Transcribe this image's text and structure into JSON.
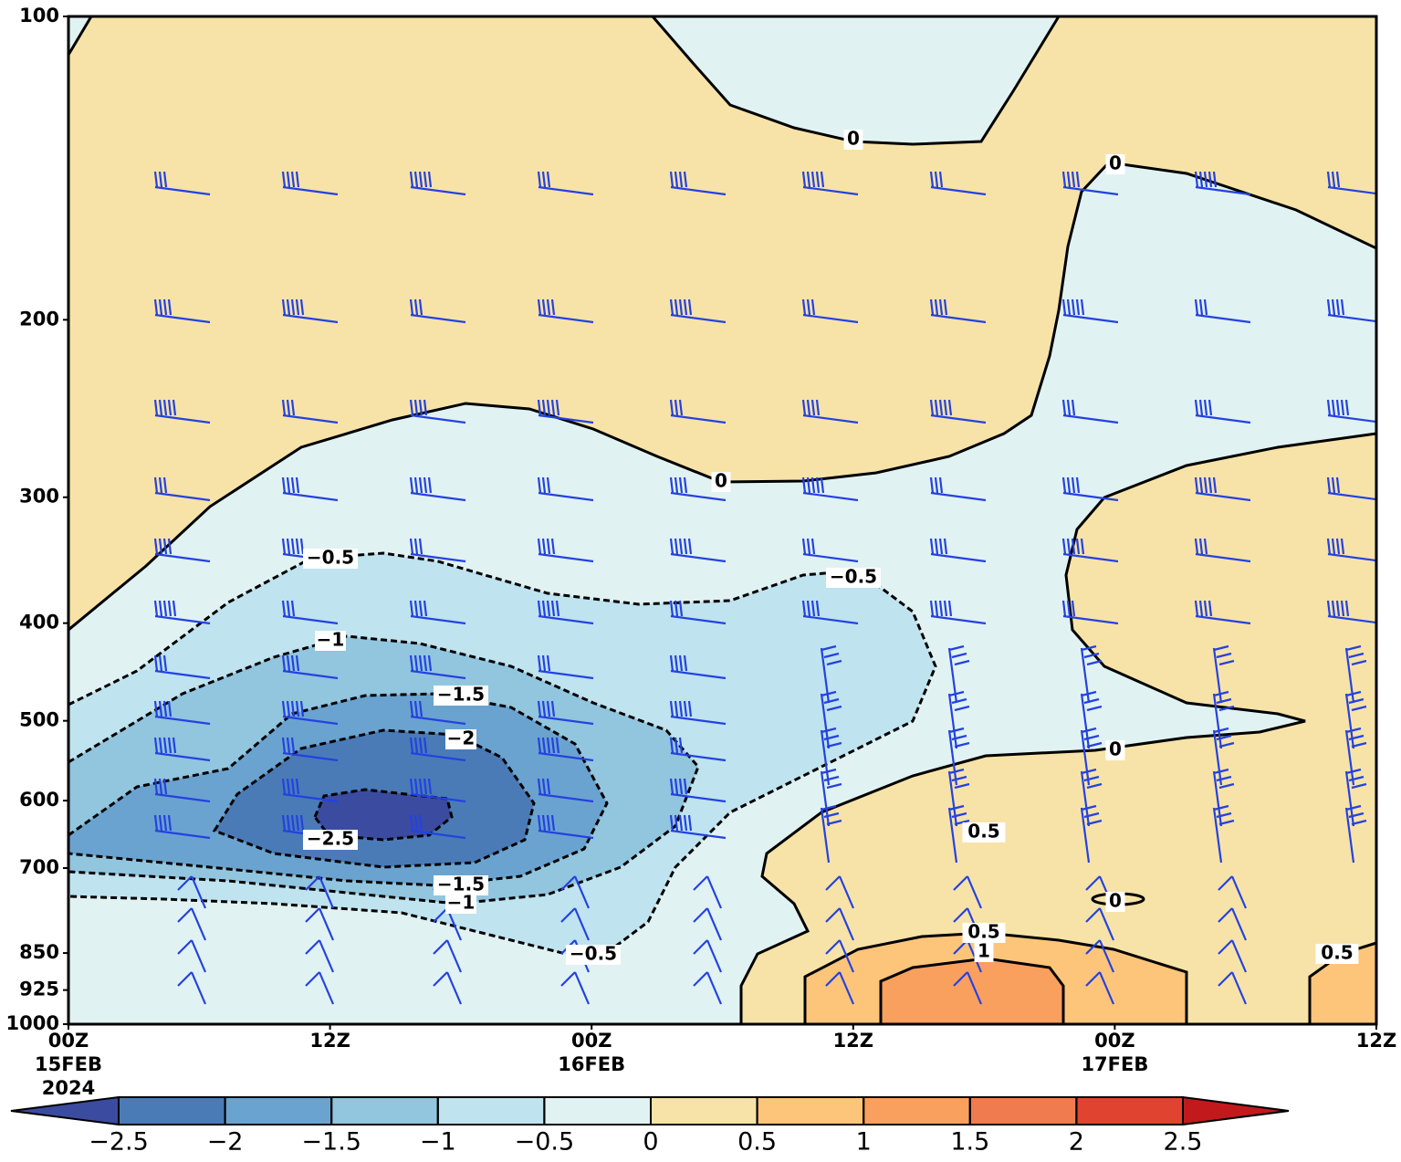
{
  "chart_data": {
    "type": "contour",
    "ylim": [
      1000,
      100
    ],
    "ylog": true,
    "yticks": [
      100,
      200,
      300,
      400,
      500,
      600,
      700,
      850,
      925,
      1000
    ],
    "xlim": [
      0,
      60
    ],
    "xticks": [
      {
        "value": 0,
        "label": [
          "00Z",
          "15FEB",
          "2024"
        ]
      },
      {
        "value": 12,
        "label": [
          "12Z"
        ]
      },
      {
        "value": 24,
        "label": [
          "00Z",
          "16FEB"
        ]
      },
      {
        "value": 36,
        "label": [
          "12Z"
        ]
      },
      {
        "value": 48,
        "label": [
          "00Z",
          "17FEB"
        ]
      },
      {
        "value": 60,
        "label": [
          "12Z"
        ]
      }
    ],
    "levels": [
      {
        "value": -2.5,
        "label": "−2.5"
      },
      {
        "value": -2,
        "label": "−2"
      },
      {
        "value": -1.5,
        "label": "−1.5"
      },
      {
        "value": -1,
        "label": "−1"
      },
      {
        "value": -0.5,
        "label": "−0.5"
      },
      0,
      0.5,
      1,
      1.5,
      2,
      2.5
    ],
    "colors": [
      "#3b4ba0",
      "#4a7bb7",
      "#6aa3cf",
      "#92c5de",
      "#bfe3ef",
      "#e1f2f2",
      "#f7e3a8",
      "#fcc57a",
      "#f9a05f",
      "#f07b4f",
      "#e0432f",
      "#c2191d"
    ],
    "contour_labels": [
      "0",
      "0",
      "0",
      "−0.5",
      "−0.5",
      "−1",
      "−1.5",
      "−2",
      "−2.5",
      "−1.5",
      "−1",
      "−0.5",
      "0",
      "0.5",
      "0",
      "0.5",
      "1",
      "0.5"
    ],
    "wind_barbs": true
  }
}
